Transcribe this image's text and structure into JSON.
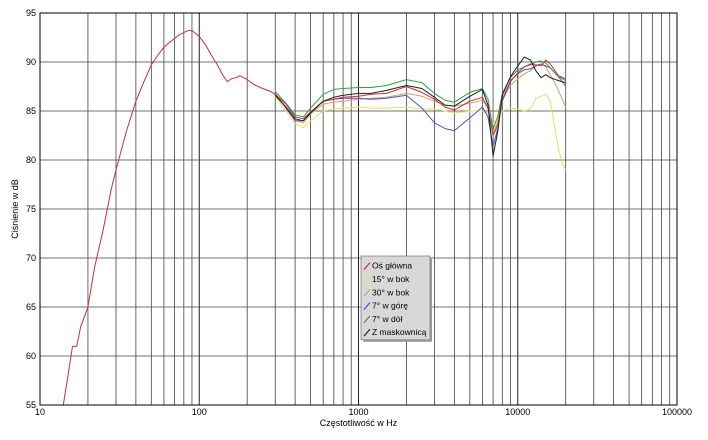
{
  "chart_data": {
    "type": "line",
    "xlabel": "Częstotliwość w Hz",
    "ylabel": "Ciśnienie w dB",
    "xscale": "log",
    "xlim": [
      10,
      100000
    ],
    "ylim": [
      55,
      95
    ],
    "x_ticks": [
      {
        "value": 10,
        "label": "10"
      },
      {
        "value": 100,
        "label": "100"
      },
      {
        "value": 1000,
        "label": "1000"
      },
      {
        "value": 10000,
        "label": "10000"
      },
      {
        "value": 100000,
        "label": "100000"
      }
    ],
    "y_ticks": [
      {
        "value": 55,
        "label": "55"
      },
      {
        "value": 60,
        "label": "60"
      },
      {
        "value": 65,
        "label": "65"
      },
      {
        "value": 70,
        "label": "70"
      },
      {
        "value": 75,
        "label": "75"
      },
      {
        "value": 80,
        "label": "80"
      },
      {
        "value": 85,
        "label": "85"
      },
      {
        "value": 90,
        "label": "90"
      },
      {
        "value": 95,
        "label": "95"
      }
    ],
    "grid": true,
    "legend_position": "center",
    "series": [
      {
        "name": "Oś główna",
        "color": "#c83232",
        "x": [
          14,
          15,
          16,
          17,
          18,
          19,
          20,
          22,
          25,
          28,
          30,
          35,
          40,
          45,
          50,
          55,
          60,
          65,
          70,
          75,
          80,
          85,
          90,
          95,
          100,
          110,
          120,
          130,
          140,
          150,
          160,
          170,
          180,
          200,
          220,
          250,
          280,
          300,
          350,
          400,
          450,
          500,
          600,
          700,
          800,
          1000,
          1200,
          1500,
          2000,
          2500,
          3000,
          3500,
          4000,
          5000,
          6000,
          6500,
          7000,
          7500,
          8000,
          9000,
          10000,
          11000,
          12000,
          13000,
          14000,
          15000,
          16000,
          18000,
          20000
        ],
        "y": [
          55,
          58,
          61,
          61,
          63,
          64,
          65,
          69,
          73,
          77,
          79,
          83,
          86,
          88,
          89.7,
          90.7,
          91.5,
          92,
          92.4,
          92.8,
          93,
          93.2,
          93.2,
          92.9,
          92.6,
          91.7,
          90.6,
          89.7,
          88.7,
          88,
          88.3,
          88.4,
          88.6,
          88.2,
          87.7,
          87.3,
          87,
          86.7,
          85.7,
          84.4,
          84.2,
          84.9,
          86,
          86.2,
          86.4,
          86.5,
          86.7,
          86.8,
          87.5,
          86.9,
          86.2,
          85.4,
          85.1,
          86,
          86.4,
          85.3,
          82.5,
          83.6,
          86,
          88,
          88.9,
          89.5,
          89.8,
          89.7,
          89.6,
          90.2,
          89.8,
          88.6,
          88.3
        ]
      },
      {
        "name": "15° w bok",
        "color": "#e8e060",
        "x": [
          300,
          350,
          400,
          450,
          500,
          600,
          700,
          800,
          1000,
          1200,
          1500,
          2000,
          2500,
          3000,
          3500,
          4000,
          5000,
          6000,
          6500,
          7000,
          7500,
          8000,
          9000,
          10000,
          11000,
          12000,
          13000,
          14000,
          15000,
          16000,
          17000,
          18000,
          19000,
          20000
        ],
        "y": [
          86.5,
          85,
          83.7,
          83.3,
          84,
          85,
          85.2,
          85.3,
          85.4,
          85.3,
          85.3,
          85.4,
          85.2,
          85.2,
          85,
          84.8,
          85,
          85,
          84.8,
          83.7,
          84.3,
          85,
          85.3,
          85.2,
          85,
          85.2,
          86.3,
          86.5,
          86.7,
          86,
          83.5,
          81.2,
          79.7,
          79
        ]
      },
      {
        "name": "30° w bok",
        "color": "#d8a060",
        "x": [
          300,
          350,
          400,
          450,
          500,
          600,
          700,
          800,
          1000,
          1200,
          1500,
          2000,
          2500,
          3000,
          3500,
          4000,
          5000,
          6000,
          6500,
          7000,
          7500,
          8000,
          9000,
          10000,
          11000,
          12000,
          13000,
          14000,
          15000,
          16000,
          18000,
          20000
        ],
        "y": [
          86.6,
          85.4,
          84,
          83.8,
          84.7,
          85.7,
          85.9,
          86,
          86.2,
          86.3,
          86.4,
          86.8,
          86.5,
          86,
          85.6,
          85.5,
          85.8,
          86.1,
          85.3,
          82.6,
          84,
          86.2,
          87.6,
          88.3,
          88.8,
          89.1,
          89.6,
          89.8,
          89.5,
          88.7,
          87.1,
          85.4
        ]
      },
      {
        "name": "7° w górę",
        "color": "#5050d0",
        "x": [
          300,
          350,
          400,
          450,
          500,
          600,
          700,
          800,
          1000,
          1200,
          1500,
          2000,
          2500,
          3000,
          3500,
          4000,
          5000,
          6000,
          6500,
          7000,
          7500,
          8000,
          9000,
          10000,
          11000,
          12000,
          13000,
          14000,
          15000,
          16000,
          18000,
          20000
        ],
        "y": [
          86.8,
          85.3,
          84,
          84,
          84.9,
          86,
          86.2,
          86.3,
          86.3,
          86.2,
          86.3,
          86.6,
          85.3,
          83.8,
          83.2,
          83,
          84.3,
          85.4,
          84.4,
          81.4,
          83.3,
          86.2,
          88.1,
          88.8,
          89.2,
          89.3,
          89.6,
          89.8,
          89.6,
          89.4,
          88.5,
          88.1
        ]
      },
      {
        "name": "7° w dół",
        "color": "#30a040",
        "x": [
          300,
          350,
          400,
          450,
          500,
          600,
          700,
          800,
          1000,
          1200,
          1500,
          2000,
          2500,
          3000,
          3500,
          4000,
          5000,
          6000,
          6500,
          7000,
          7500,
          8000,
          9000,
          10000,
          11000,
          12000,
          13000,
          14000,
          15000,
          16000,
          18000,
          20000
        ],
        "y": [
          87,
          85.8,
          84.6,
          84.4,
          85.3,
          86.7,
          87.2,
          87.3,
          87.4,
          87.4,
          87.6,
          88.2,
          87.9,
          86.8,
          86.1,
          85.9,
          86.9,
          87.3,
          86.2,
          83.1,
          84.5,
          86.8,
          88.4,
          89.2,
          89.5,
          89.7,
          90,
          90.1,
          89.9,
          89.4,
          88.5,
          87.5
        ]
      },
      {
        "name": "Z maskownicą",
        "color": "#202020",
        "x": [
          300,
          350,
          400,
          450,
          500,
          600,
          700,
          800,
          1000,
          1200,
          1500,
          2000,
          2500,
          3000,
          3500,
          4000,
          5000,
          6000,
          6500,
          7000,
          7500,
          8000,
          9000,
          10000,
          11000,
          12000,
          13000,
          14000,
          15000,
          16000,
          18000,
          20000
        ],
        "y": [
          86.6,
          85.4,
          84.2,
          84,
          84.8,
          86,
          86.4,
          86.6,
          86.8,
          86.8,
          87.1,
          87.6,
          87.3,
          86.4,
          85.6,
          85.5,
          86.5,
          87.2,
          85.6,
          80.4,
          83,
          86.6,
          88.5,
          89.6,
          90.5,
          90.2,
          89.1,
          88.4,
          88.7,
          88.4,
          88.1,
          87.9
        ]
      }
    ]
  }
}
